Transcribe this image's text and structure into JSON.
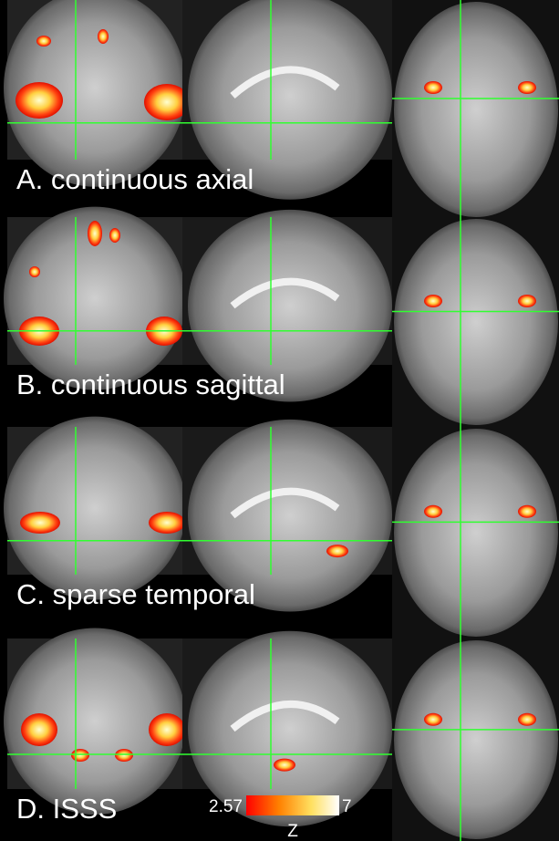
{
  "panels": [
    {
      "label": "A. continuous axial"
    },
    {
      "label": "B. continuous sagittal"
    },
    {
      "label": "C. sparse temporal"
    },
    {
      "label": "D. ISSS"
    }
  ],
  "colorbar": {
    "min": "2.57",
    "max": "7",
    "label": "Z"
  }
}
